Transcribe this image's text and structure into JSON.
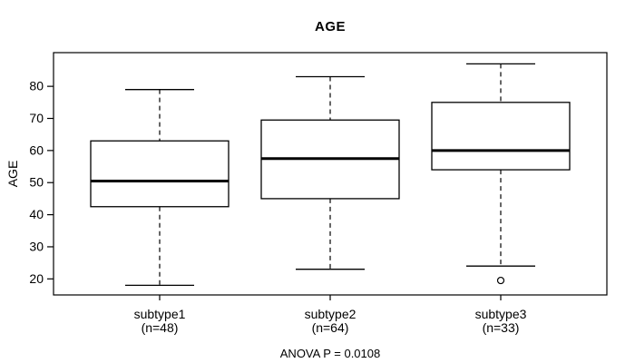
{
  "figure": {
    "background": "#ffffff"
  },
  "chart_data": {
    "type": "boxplot",
    "title": "AGE",
    "xlabel": "",
    "ylabel": "AGE",
    "footer_annotation": "ANOVA P = 0.0108",
    "y_ticks": [
      20,
      30,
      40,
      50,
      60,
      70,
      80
    ],
    "ylim": [
      15,
      90.5
    ],
    "grid": false,
    "legend": "none",
    "groups": [
      {
        "label": "subtype1",
        "n_label": "(n=48)",
        "whisker_low": 18,
        "q1": 42.5,
        "median": 50.5,
        "q3": 63,
        "whisker_high": 79,
        "outliers": []
      },
      {
        "label": "subtype2",
        "n_label": "(n=64)",
        "whisker_low": 23,
        "q1": 45,
        "median": 57.5,
        "q3": 69.5,
        "whisker_high": 83,
        "outliers": []
      },
      {
        "label": "subtype3",
        "n_label": "(n=33)",
        "whisker_low": 24,
        "q1": 54,
        "median": 60,
        "q3": 75,
        "whisker_high": 87,
        "outliers": [
          19.5
        ]
      }
    ],
    "colors": {
      "line": "#000000",
      "box_fill": "#ffffff",
      "background": "#ffffff"
    }
  }
}
